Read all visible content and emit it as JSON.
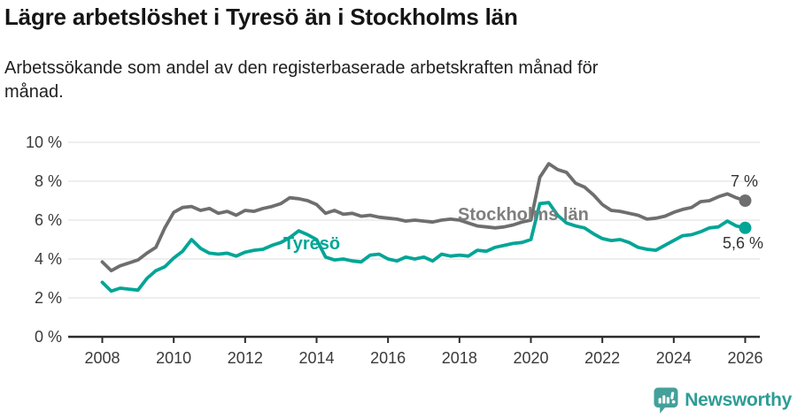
{
  "header": {
    "title": "Lägre arbetslöshet i Tyresö än i Stockholms län",
    "subtitle_line1": "Arbetssökande som andel av den registerbaserade arbetskraften månad för",
    "subtitle_line2": "månad."
  },
  "footer": {
    "brand": "Newsworthy",
    "logo_icon": "newsworthy-speech-bubble-bar-chart-icon"
  },
  "colors": {
    "tyreso_line": "#00a596",
    "stockholm_line": "#6e6e6e",
    "stockholm_label": "#7e7e7e",
    "gridline": "#e4e4e4",
    "axis": "#2c2c2c",
    "tick_text": "#3a3a3a",
    "end_label_text": "#333333",
    "brand_teal": "#2d9d95"
  },
  "chart_data": {
    "type": "line",
    "title": "Lägre arbetslöshet i Tyresö än i Stockholms län",
    "subtitle": "Arbetssökande som andel av den registerbaserade arbetskraften månad för månad.",
    "xlabel": "",
    "ylabel": "",
    "grid": "horizontal",
    "legend_position": "inline-labels-on-lines",
    "ylim": [
      0,
      10
    ],
    "xlim": [
      2007.05,
      2026.4
    ],
    "x_ticks": [
      2008,
      2010,
      2012,
      2014,
      2016,
      2018,
      2020,
      2022,
      2024,
      2026
    ],
    "y_ticks": [
      {
        "value": 0,
        "label": "0 %"
      },
      {
        "value": 2,
        "label": "2 %"
      },
      {
        "value": 4,
        "label": "4 %"
      },
      {
        "value": 6,
        "label": "6 %"
      },
      {
        "value": 8,
        "label": "8 %"
      },
      {
        "value": 10,
        "label": "10 %"
      }
    ],
    "x": [
      2008,
      2008.25,
      2008.5,
      2008.75,
      2009,
      2009.25,
      2009.5,
      2009.75,
      2010,
      2010.25,
      2010.5,
      2010.75,
      2011,
      2011.25,
      2011.5,
      2011.75,
      2012,
      2012.25,
      2012.5,
      2012.75,
      2013,
      2013.25,
      2013.5,
      2013.75,
      2014,
      2014.25,
      2014.5,
      2014.75,
      2015,
      2015.25,
      2015.5,
      2015.75,
      2016,
      2016.25,
      2016.5,
      2016.75,
      2017,
      2017.25,
      2017.5,
      2017.75,
      2018,
      2018.25,
      2018.5,
      2018.75,
      2019,
      2019.25,
      2019.5,
      2019.75,
      2020,
      2020.25,
      2020.5,
      2020.75,
      2021,
      2021.25,
      2021.5,
      2021.75,
      2022,
      2022.25,
      2022.5,
      2022.75,
      2023,
      2023.25,
      2023.5,
      2023.75,
      2024,
      2024.25,
      2024.5,
      2024.75,
      2025,
      2025.25,
      2025.5,
      2025.75,
      2026
    ],
    "series": [
      {
        "id": "stockholm",
        "name": "Stockholms län",
        "color": "#6e6e6e",
        "end_label": "7 %",
        "end_value": 7.0,
        "values": [
          3.85,
          3.4,
          3.65,
          3.8,
          3.95,
          4.3,
          4.6,
          5.6,
          6.4,
          6.65,
          6.7,
          6.5,
          6.6,
          6.35,
          6.45,
          6.25,
          6.5,
          6.45,
          6.6,
          6.7,
          6.85,
          7.15,
          7.1,
          7.0,
          6.8,
          6.35,
          6.5,
          6.3,
          6.35,
          6.2,
          6.25,
          6.15,
          6.1,
          6.05,
          5.95,
          6.0,
          5.95,
          5.9,
          6.0,
          6.05,
          6.0,
          5.85,
          5.7,
          5.65,
          5.6,
          5.65,
          5.75,
          5.9,
          6.0,
          8.2,
          8.9,
          8.6,
          8.45,
          7.9,
          7.7,
          7.3,
          6.8,
          6.5,
          6.45,
          6.35,
          6.25,
          6.05,
          6.1,
          6.2,
          6.4,
          6.55,
          6.65,
          6.95,
          7.0,
          7.2,
          7.35,
          7.15,
          7.0
        ]
      },
      {
        "id": "tyreso",
        "name": "Tyresö",
        "color": "#00a596",
        "end_label": "5,6 %",
        "end_value": 5.6,
        "values": [
          2.8,
          2.35,
          2.5,
          2.45,
          2.4,
          3.0,
          3.4,
          3.6,
          4.05,
          4.4,
          5.0,
          4.55,
          4.3,
          4.25,
          4.3,
          4.15,
          4.35,
          4.45,
          4.5,
          4.7,
          4.85,
          5.1,
          5.45,
          5.25,
          5.0,
          4.1,
          3.95,
          4.0,
          3.9,
          3.85,
          4.2,
          4.25,
          4.0,
          3.9,
          4.1,
          4.0,
          4.1,
          3.9,
          4.25,
          4.15,
          4.2,
          4.15,
          4.45,
          4.4,
          4.6,
          4.7,
          4.8,
          4.85,
          5.0,
          6.85,
          6.9,
          6.25,
          5.85,
          5.7,
          5.6,
          5.3,
          5.05,
          4.95,
          5.0,
          4.85,
          4.6,
          4.5,
          4.45,
          4.7,
          4.95,
          5.2,
          5.25,
          5.4,
          5.6,
          5.65,
          5.95,
          5.7,
          5.6
        ]
      }
    ]
  }
}
